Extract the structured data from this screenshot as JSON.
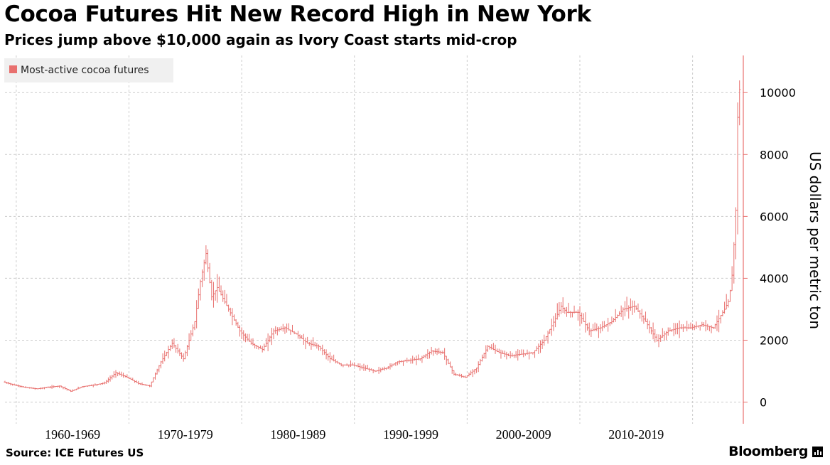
{
  "title": "Cocoa Futures Hit New Record High in New York",
  "subtitle": "Prices jump above $10,000 again as Ivory Coast starts mid-crop",
  "source": "Source: ICE Futures US",
  "brand": "Bloomberg",
  "colors": {
    "series": "#e8706e",
    "grid": "#cccccc",
    "legend_bg": "#f0f0f0"
  },
  "chart_data": {
    "type": "line",
    "style": "ohlc-bars",
    "legend": {
      "position": "top-left"
    },
    "ylabel": "US dollars per metric ton",
    "ylim": [
      -700,
      11200
    ],
    "yticks": [
      0,
      2000,
      4000,
      6000,
      8000,
      10000
    ],
    "x_range": [
      1959.0,
      2024.5
    ],
    "decades": [
      {
        "label": "1960-1969",
        "start": 1960
      },
      {
        "label": "1970-1979",
        "start": 1970
      },
      {
        "label": "1980-1989",
        "start": 1980
      },
      {
        "label": "1990-1999",
        "start": 1990
      },
      {
        "label": "2000-2009",
        "start": 2000
      },
      {
        "label": "2010-2019",
        "start": 2010
      },
      {
        "label": "",
        "start": 2020
      }
    ],
    "grid": true,
    "series": [
      {
        "name": "Most-active cocoa futures",
        "x": [
          1959,
          1960,
          1961,
          1962,
          1963,
          1964,
          1965,
          1966,
          1967,
          1968,
          1969,
          1970,
          1971,
          1972,
          1973,
          1974,
          1975,
          1976,
          1976.5,
          1977,
          1977.5,
          1978,
          1979,
          1980,
          1981,
          1982,
          1983,
          1984,
          1985,
          1986,
          1987,
          1988,
          1989,
          1990,
          1991,
          1992,
          1993,
          1994,
          1995,
          1996,
          1997,
          1998,
          1999,
          2000,
          2001,
          2002,
          2003,
          2004,
          2005,
          2006,
          2007,
          2008,
          2008.5,
          2009,
          2010,
          2011,
          2012,
          2013,
          2014,
          2015,
          2016,
          2017,
          2018,
          2019,
          2020,
          2021,
          2022,
          2023,
          2023.4,
          2023.7,
          2024,
          2024.2,
          2024.3
        ],
        "values": [
          650,
          550,
          470,
          430,
          480,
          520,
          350,
          500,
          550,
          620,
          950,
          800,
          600,
          520,
          1300,
          1900,
          1400,
          2600,
          3900,
          4800,
          3400,
          3700,
          3000,
          2300,
          1900,
          1700,
          2300,
          2400,
          2200,
          1900,
          1800,
          1400,
          1200,
          1200,
          1100,
          1000,
          1100,
          1300,
          1350,
          1400,
          1650,
          1600,
          900,
          800,
          1100,
          1800,
          1600,
          1500,
          1550,
          1600,
          2000,
          2700,
          3100,
          2900,
          2900,
          2300,
          2400,
          2600,
          3000,
          3100,
          2600,
          2000,
          2300,
          2400,
          2400,
          2500,
          2400,
          3000,
          3300,
          4200,
          6200,
          9800,
          10100
        ]
      }
    ]
  }
}
